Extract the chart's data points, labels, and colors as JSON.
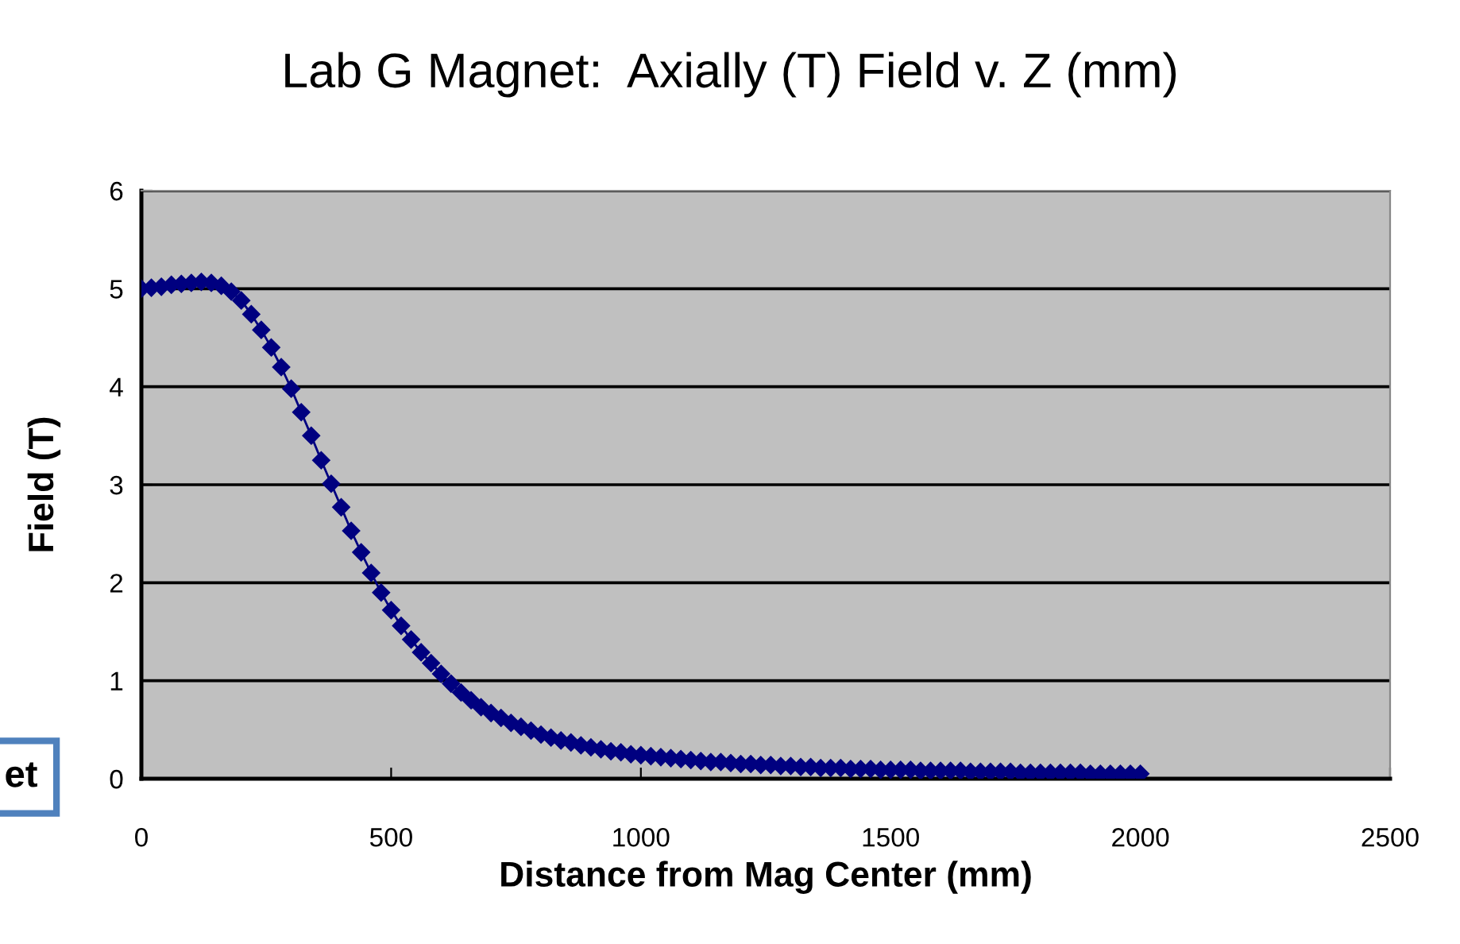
{
  "chart_data": {
    "type": "line",
    "title": "Lab G Magnet:  Axially (T) Field v. Z (mm)",
    "xlabel": "Distance from Mag Center (mm)",
    "ylabel": "Field (T)",
    "annotations": [
      "et"
    ],
    "x": [
      0,
      20,
      40,
      60,
      80,
      100,
      120,
      140,
      160,
      180,
      200,
      220,
      240,
      260,
      280,
      300,
      320,
      340,
      360,
      380,
      400,
      420,
      440,
      460,
      480,
      500,
      520,
      540,
      560,
      580,
      600,
      620,
      640,
      660,
      680,
      700,
      720,
      740,
      760,
      780,
      800,
      820,
      840,
      860,
      880,
      900,
      920,
      940,
      960,
      980,
      1000,
      1020,
      1040,
      1060,
      1080,
      1100,
      1120,
      1140,
      1160,
      1180,
      1200,
      1220,
      1240,
      1260,
      1280,
      1300,
      1320,
      1340,
      1360,
      1380,
      1400,
      1420,
      1440,
      1460,
      1480,
      1500,
      1520,
      1540,
      1560,
      1580,
      1600,
      1620,
      1640,
      1660,
      1680,
      1700,
      1720,
      1740,
      1760,
      1780,
      1800,
      1820,
      1840,
      1860,
      1880,
      1900,
      1920,
      1940,
      1960,
      1980,
      2000
    ],
    "series": [
      {
        "color": "#000080",
        "values": [
          5.0,
          5.01,
          5.02,
          5.04,
          5.05,
          5.06,
          5.07,
          5.06,
          5.03,
          4.97,
          4.88,
          4.74,
          4.58,
          4.4,
          4.2,
          3.98,
          3.74,
          3.5,
          3.25,
          3.01,
          2.77,
          2.53,
          2.31,
          2.1,
          1.9,
          1.72,
          1.56,
          1.42,
          1.29,
          1.18,
          1.07,
          0.97,
          0.88,
          0.8,
          0.73,
          0.67,
          0.62,
          0.57,
          0.53,
          0.49,
          0.45,
          0.42,
          0.39,
          0.37,
          0.34,
          0.32,
          0.3,
          0.28,
          0.27,
          0.25,
          0.24,
          0.23,
          0.22,
          0.21,
          0.2,
          0.19,
          0.18,
          0.17,
          0.17,
          0.16,
          0.15,
          0.15,
          0.14,
          0.14,
          0.13,
          0.13,
          0.12,
          0.12,
          0.11,
          0.11,
          0.11,
          0.1,
          0.1,
          0.1,
          0.09,
          0.09,
          0.09,
          0.09,
          0.08,
          0.08,
          0.08,
          0.08,
          0.08,
          0.07,
          0.07,
          0.07,
          0.07,
          0.07,
          0.06,
          0.06,
          0.06,
          0.06,
          0.06,
          0.06,
          0.06,
          0.05,
          0.05,
          0.05,
          0.05,
          0.05,
          0.05
        ]
      }
    ],
    "xlim": [
      0,
      2500
    ],
    "xticks": [
      0,
      500,
      1000,
      1500,
      2000,
      2500
    ],
    "ylim": [
      0,
      6
    ],
    "yticks": [
      0,
      1,
      2,
      3,
      4,
      5,
      6
    ],
    "grid": "y",
    "legend": false,
    "marker": "diamond",
    "line_style": "solid"
  }
}
